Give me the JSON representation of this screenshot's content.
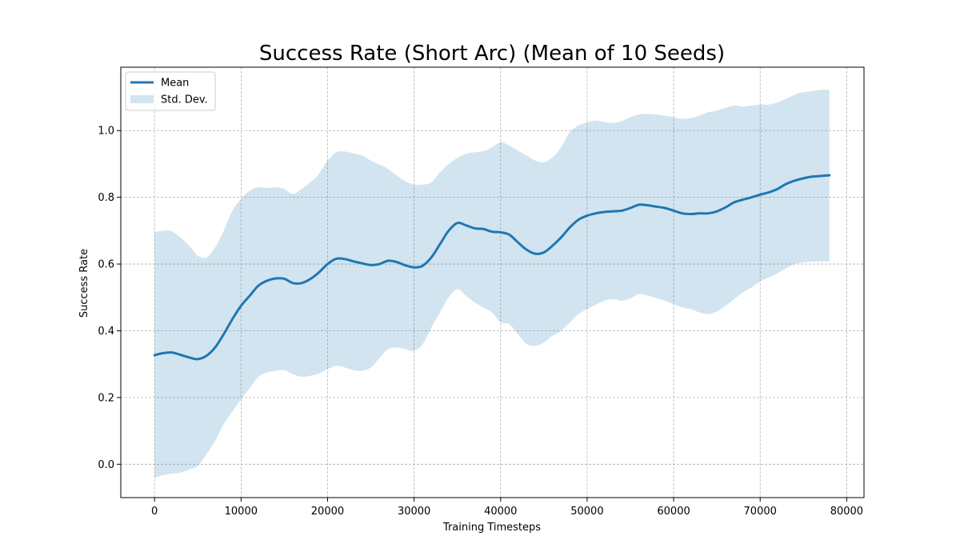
{
  "chart_data": {
    "type": "line",
    "title": "Success Rate (Short Arc) (Mean of 10 Seeds)",
    "xlabel": "Training Timesteps",
    "ylabel": "Success Rate",
    "xlim": [
      -3900,
      82000
    ],
    "ylim": [
      -0.1,
      1.19
    ],
    "xticks": [
      0,
      10000,
      20000,
      30000,
      40000,
      50000,
      60000,
      70000,
      80000
    ],
    "yticks": [
      0.0,
      0.2,
      0.4,
      0.6,
      0.8,
      1.0
    ],
    "xtick_labels": [
      "0",
      "10000",
      "20000",
      "30000",
      "40000",
      "50000",
      "60000",
      "70000",
      "80000"
    ],
    "ytick_labels": [
      "0.0",
      "0.2",
      "0.4",
      "0.6",
      "0.8",
      "1.0"
    ],
    "grid": true,
    "legend_position": "top-left",
    "legend": [
      {
        "label": "Mean",
        "kind": "line"
      },
      {
        "label": "Std. Dev.",
        "kind": "band"
      }
    ],
    "colors": {
      "mean": "#1f77b4",
      "band": "#1f77b4",
      "band_opacity": 0.2
    },
    "series": [
      {
        "name": "Mean",
        "x": [
          0,
          1000,
          2000,
          3000,
          4000,
          5000,
          6000,
          7000,
          8000,
          9000,
          10000,
          11000,
          12000,
          13000,
          14000,
          15000,
          16000,
          17000,
          18000,
          19000,
          20000,
          21000,
          22000,
          23000,
          24000,
          25000,
          26000,
          27000,
          28000,
          29000,
          30000,
          31000,
          32000,
          33000,
          34000,
          35000,
          36000,
          37000,
          38000,
          39000,
          40000,
          41000,
          42000,
          43000,
          44000,
          45000,
          46000,
          47000,
          48000,
          49000,
          50000,
          51000,
          52000,
          53000,
          54000,
          55000,
          56000,
          57000,
          58000,
          59000,
          60000,
          61000,
          62000,
          63000,
          64000,
          65000,
          66000,
          67000,
          68000,
          69000,
          70000,
          71000,
          72000,
          73000,
          74000,
          75000,
          76000,
          77000,
          78000
        ],
        "mean": [
          0.327,
          0.333,
          0.335,
          0.328,
          0.32,
          0.315,
          0.325,
          0.35,
          0.39,
          0.435,
          0.475,
          0.505,
          0.535,
          0.55,
          0.557,
          0.556,
          0.543,
          0.543,
          0.555,
          0.575,
          0.6,
          0.616,
          0.615,
          0.608,
          0.602,
          0.597,
          0.6,
          0.61,
          0.606,
          0.596,
          0.59,
          0.595,
          0.62,
          0.66,
          0.7,
          0.723,
          0.716,
          0.707,
          0.705,
          0.697,
          0.695,
          0.688,
          0.665,
          0.643,
          0.631,
          0.635,
          0.655,
          0.68,
          0.71,
          0.733,
          0.745,
          0.752,
          0.756,
          0.758,
          0.76,
          0.768,
          0.778,
          0.776,
          0.772,
          0.768,
          0.76,
          0.752,
          0.75,
          0.752,
          0.752,
          0.758,
          0.77,
          0.785,
          0.793,
          0.8,
          0.808,
          0.815,
          0.825,
          0.84,
          0.85,
          0.857,
          0.862,
          0.864,
          0.866
        ],
        "lower": [
          -0.04,
          -0.033,
          -0.028,
          -0.025,
          -0.016,
          -0.005,
          0.03,
          0.07,
          0.12,
          0.158,
          0.195,
          0.228,
          0.262,
          0.275,
          0.28,
          0.282,
          0.27,
          0.262,
          0.265,
          0.272,
          0.285,
          0.295,
          0.29,
          0.282,
          0.28,
          0.29,
          0.318,
          0.345,
          0.35,
          0.345,
          0.34,
          0.36,
          0.41,
          0.455,
          0.5,
          0.525,
          0.505,
          0.485,
          0.47,
          0.455,
          0.425,
          0.42,
          0.39,
          0.36,
          0.355,
          0.365,
          0.385,
          0.4,
          0.425,
          0.45,
          0.465,
          0.478,
          0.49,
          0.495,
          0.49,
          0.497,
          0.51,
          0.505,
          0.498,
          0.49,
          0.48,
          0.47,
          0.465,
          0.455,
          0.45,
          0.458,
          0.475,
          0.495,
          0.515,
          0.53,
          0.548,
          0.56,
          0.572,
          0.588,
          0.6,
          0.605,
          0.607,
          0.608,
          0.608
        ],
        "upper": [
          0.695,
          0.7,
          0.698,
          0.68,
          0.655,
          0.625,
          0.62,
          0.65,
          0.7,
          0.76,
          0.795,
          0.82,
          0.83,
          0.828,
          0.83,
          0.825,
          0.81,
          0.825,
          0.845,
          0.87,
          0.91,
          0.935,
          0.937,
          0.932,
          0.925,
          0.91,
          0.898,
          0.885,
          0.865,
          0.848,
          0.838,
          0.838,
          0.845,
          0.875,
          0.9,
          0.918,
          0.93,
          0.935,
          0.938,
          0.95,
          0.965,
          0.955,
          0.94,
          0.925,
          0.91,
          0.905,
          0.92,
          0.95,
          0.995,
          1.015,
          1.025,
          1.03,
          1.025,
          1.023,
          1.028,
          1.04,
          1.048,
          1.05,
          1.048,
          1.045,
          1.04,
          1.035,
          1.038,
          1.045,
          1.055,
          1.06,
          1.068,
          1.075,
          1.072,
          1.075,
          1.078,
          1.078,
          1.085,
          1.095,
          1.108,
          1.115,
          1.118,
          1.122,
          1.122
        ]
      }
    ]
  }
}
